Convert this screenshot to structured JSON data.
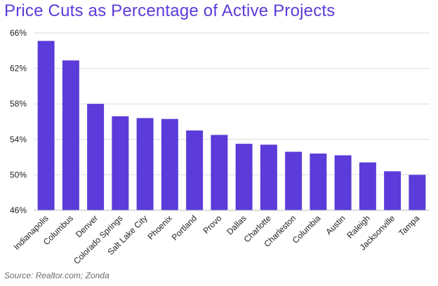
{
  "chart_data": {
    "type": "bar",
    "title": "Price Cuts as Percentage of Active Projects",
    "source": "Source: Realtor.com; Zonda",
    "xlabel": "",
    "ylabel": "",
    "ylim": [
      46,
      66
    ],
    "yticks": [
      "66%",
      "62%",
      "58%",
      "54%",
      "50%",
      "46%"
    ],
    "ytick_values": [
      66,
      62,
      58,
      54,
      50,
      46
    ],
    "grid": true,
    "bar_color": "#5b3bd9",
    "categories": [
      "Indianapolis",
      "Columbus",
      "Denver",
      "Colorado Springs",
      "Salt Lake City",
      "Phoenix",
      "Portland",
      "Provo",
      "Dallas",
      "Charlotte",
      "Charleston",
      "Columbia",
      "Austin",
      "Raleigh",
      "Jacksonville",
      "Tampa"
    ],
    "values": [
      65.1,
      62.9,
      58.0,
      56.6,
      56.4,
      56.3,
      55.0,
      54.5,
      53.5,
      53.4,
      52.6,
      52.4,
      52.2,
      51.4,
      50.4,
      50.0
    ]
  }
}
